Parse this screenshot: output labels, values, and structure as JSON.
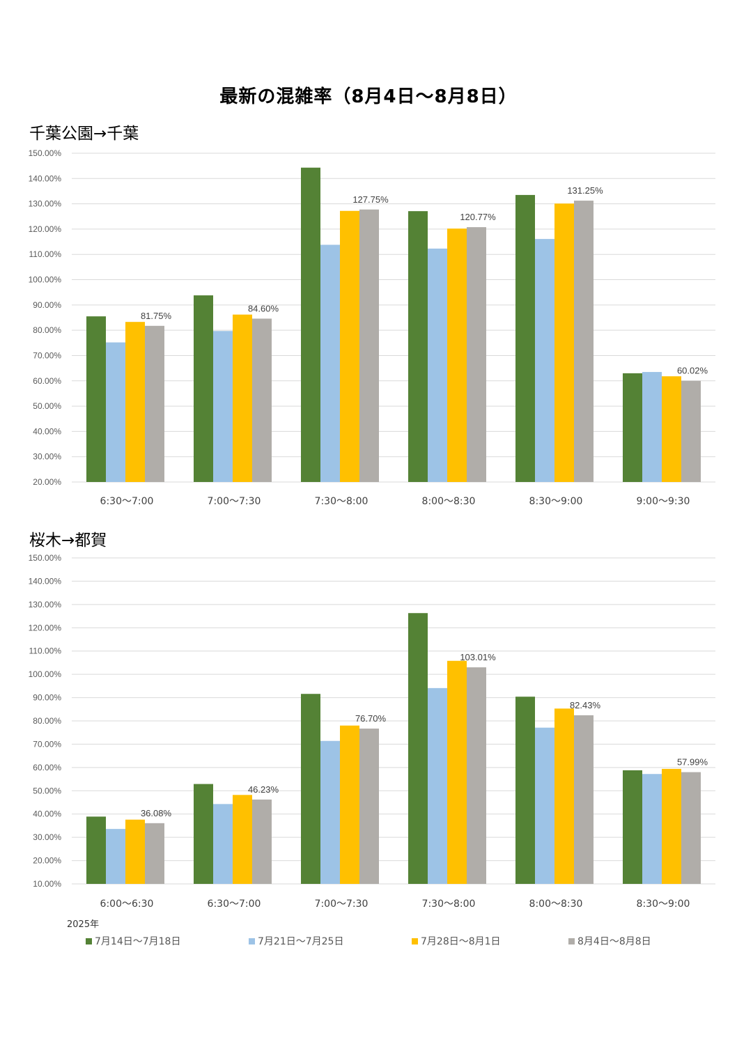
{
  "page_title": "最新の混雑率（8月4日～8月8日）",
  "year_label": "2025年",
  "colors": [
    "#548235",
    "#9DC3E6",
    "#FFC000",
    "#B0ADA9"
  ],
  "legend": [
    "7月14日～7月18日",
    "7月21日～7月25日",
    "7月28日～8月1日",
    "8月4日～8月8日"
  ],
  "chart_data": [
    {
      "type": "bar",
      "title": "千葉公園→千葉",
      "categories": [
        "6:30～7:00",
        "7:00～7:30",
        "7:30～8:00",
        "8:00～8:30",
        "8:30～9:00",
        "9:00～9:30"
      ],
      "ylim": [
        20,
        150
      ],
      "yticks": [
        "20.00%",
        "30.00%",
        "40.00%",
        "50.00%",
        "60.00%",
        "70.00%",
        "80.00%",
        "90.00%",
        "100.00%",
        "110.00%",
        "120.00%",
        "130.00%",
        "140.00%",
        "150.00%"
      ],
      "series": [
        {
          "name": "7月14日～7月18日",
          "values": [
            85.5,
            93.8,
            144.3,
            127.1,
            133.5,
            63.0
          ]
        },
        {
          "name": "7月21日～7月25日",
          "values": [
            75.2,
            79.7,
            113.8,
            112.3,
            116.1,
            63.5
          ]
        },
        {
          "name": "7月28日～8月1日",
          "values": [
            83.3,
            86.2,
            127.2,
            120.2,
            130.1,
            61.8
          ]
        },
        {
          "name": "8月4日～8月8日",
          "values": [
            81.75,
            84.6,
            127.75,
            120.77,
            131.25,
            60.02
          ]
        }
      ],
      "data_labels": [
        "81.75%",
        "84.60%",
        "127.75%",
        "120.77%",
        "131.25%",
        "60.02%"
      ]
    },
    {
      "type": "bar",
      "title": "桜木→都賀",
      "categories": [
        "6:00～6:30",
        "6:30～7:00",
        "7:00～7:30",
        "7:30～8:00",
        "8:00～8:30",
        "8:30～9:00"
      ],
      "ylim": [
        10,
        150
      ],
      "yticks": [
        "10.00%",
        "20.00%",
        "30.00%",
        "40.00%",
        "50.00%",
        "60.00%",
        "70.00%",
        "80.00%",
        "90.00%",
        "100.00%",
        "110.00%",
        "120.00%",
        "130.00%",
        "140.00%",
        "150.00%"
      ],
      "series": [
        {
          "name": "7月14日～7月18日",
          "values": [
            38.9,
            52.9,
            91.6,
            126.3,
            90.4,
            58.8
          ]
        },
        {
          "name": "7月21日～7月25日",
          "values": [
            33.6,
            44.3,
            71.4,
            94.1,
            77.1,
            57.2
          ]
        },
        {
          "name": "7月28日～8月1日",
          "values": [
            37.6,
            48.2,
            78.0,
            105.8,
            85.3,
            59.4
          ]
        },
        {
          "name": "8月4日～8月8日",
          "values": [
            36.08,
            46.23,
            76.7,
            103.01,
            82.43,
            57.99
          ]
        }
      ],
      "data_labels": [
        "36.08%",
        "46.23%",
        "76.70%",
        "103.01%",
        "82.43%",
        "57.99%"
      ]
    }
  ]
}
